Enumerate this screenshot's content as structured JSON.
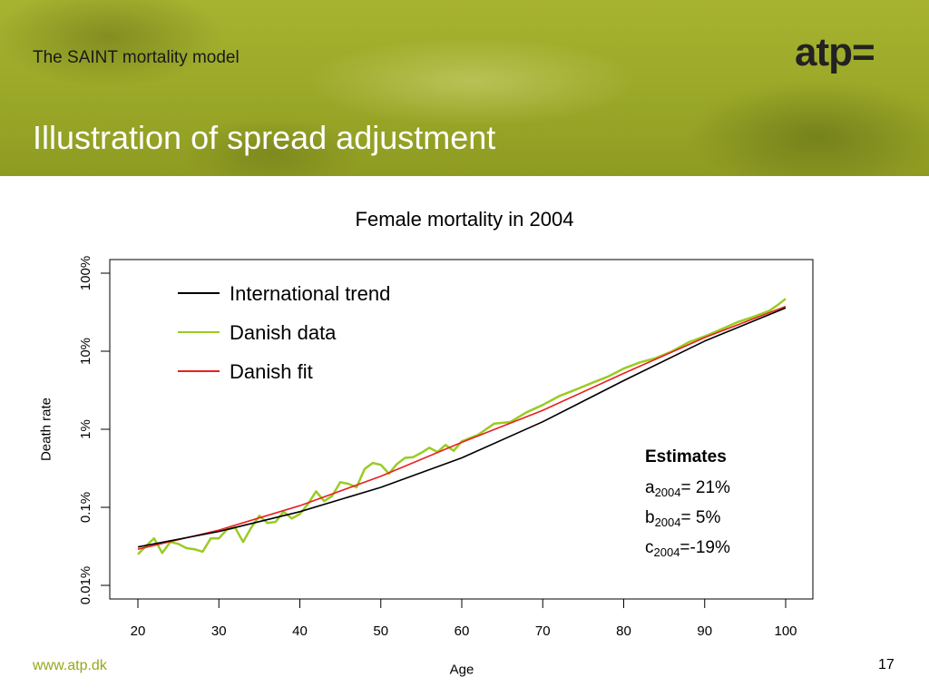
{
  "header": {
    "title": "The SAINT mortality model",
    "slide_title": "Illustration of spread adjustment",
    "logo": "atp="
  },
  "footer": {
    "link": "www.atp.dk",
    "page_number": "17"
  },
  "colors": {
    "accent": "#98a61b",
    "international": "#000000",
    "danish_data": "#99cc22",
    "danish_fit": "#e82020"
  },
  "chart_data": {
    "type": "line",
    "title": "Female mortality in 2004",
    "xlabel": "Age",
    "ylabel": "Death rate",
    "xlim": [
      20,
      100
    ],
    "ylim": [
      0.0001,
      1
    ],
    "y_scale": "log",
    "x_ticks": [
      20,
      30,
      40,
      50,
      60,
      70,
      80,
      90,
      100
    ],
    "y_ticks": [
      {
        "value": 0.0001,
        "label": "0.01%"
      },
      {
        "value": 0.001,
        "label": "0.1%"
      },
      {
        "value": 0.01,
        "label": "1%"
      },
      {
        "value": 0.1,
        "label": "10%"
      },
      {
        "value": 1,
        "label": "100%"
      }
    ],
    "legend_position": "top-left",
    "series": [
      {
        "name": "International trend",
        "color": "#000000",
        "x": [
          20,
          30,
          40,
          50,
          60,
          70,
          80,
          90,
          100
        ],
        "y": [
          0.00031,
          0.00049,
          0.00088,
          0.0018,
          0.0043,
          0.0125,
          0.042,
          0.135,
          0.36
        ]
      },
      {
        "name": "Danish data",
        "color": "#99cc22",
        "x": [
          20,
          21,
          22,
          23,
          24,
          25,
          26,
          27,
          28,
          29,
          30,
          31,
          32,
          33,
          34,
          35,
          36,
          37,
          38,
          39,
          40,
          41,
          42,
          43,
          44,
          45,
          46,
          47,
          48,
          49,
          50,
          51,
          52,
          53,
          54,
          55,
          56,
          57,
          58,
          59,
          60,
          62,
          64,
          66,
          68,
          70,
          72,
          74,
          76,
          78,
          80,
          82,
          84,
          86,
          88,
          90,
          92,
          94,
          96,
          98,
          99,
          100
        ],
        "y": [
          0.00025,
          0.00032,
          0.0004,
          0.00026,
          0.00036,
          0.00034,
          0.0003,
          0.00029,
          0.00027,
          0.0004,
          0.0004,
          0.00052,
          0.00055,
          0.00036,
          0.00055,
          0.00078,
          0.00063,
          0.00065,
          0.00088,
          0.00072,
          0.00082,
          0.0011,
          0.0016,
          0.0012,
          0.0014,
          0.0021,
          0.002,
          0.0018,
          0.0031,
          0.0037,
          0.0035,
          0.0027,
          0.0036,
          0.0043,
          0.0044,
          0.005,
          0.0058,
          0.0051,
          0.0063,
          0.0053,
          0.007,
          0.0085,
          0.0118,
          0.0124,
          0.0165,
          0.0205,
          0.0265,
          0.032,
          0.039,
          0.047,
          0.06,
          0.072,
          0.082,
          0.1,
          0.13,
          0.155,
          0.19,
          0.235,
          0.275,
          0.33,
          0.39,
          0.47
        ]
      },
      {
        "name": "Danish fit",
        "color": "#e82020",
        "x": [
          20,
          30,
          40,
          50,
          60,
          70,
          80,
          90,
          100
        ],
        "y": [
          0.00029,
          0.00051,
          0.00105,
          0.0025,
          0.0068,
          0.0175,
          0.052,
          0.15,
          0.375
        ]
      }
    ],
    "annotation": {
      "heading": "Estimates",
      "lines": [
        {
          "var": "a",
          "sub": "2004",
          "rest": "= 21%"
        },
        {
          "var": "b",
          "sub": "2004",
          "rest": "= 5%"
        },
        {
          "var": "c",
          "sub": "2004",
          "rest": "=-19%"
        }
      ]
    }
  }
}
